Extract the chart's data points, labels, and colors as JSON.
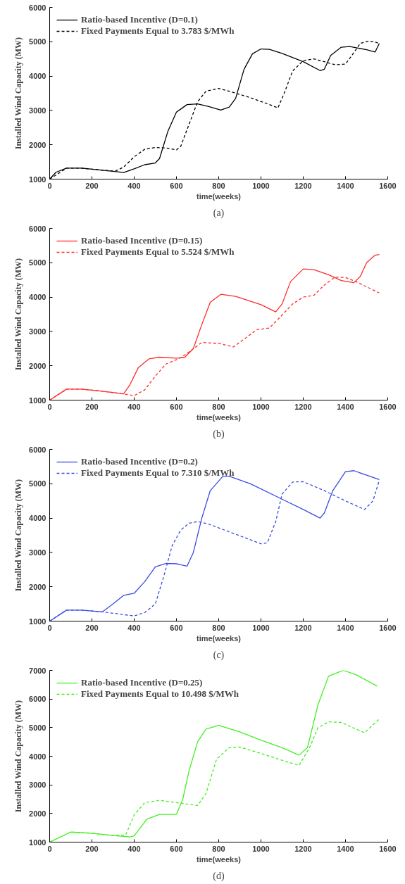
{
  "chart_data": [
    {
      "type": "line",
      "xlabel": "time(weeks)",
      "ylabel": "Installed Wind Capacity (MW)",
      "annotations": [
        "(a)"
      ],
      "xlim": [
        0,
        1600
      ],
      "xticks": [
        0,
        200,
        400,
        600,
        800,
        1000,
        1200,
        1400,
        1600
      ],
      "ylim": [
        1000,
        6000
      ],
      "yticks": [
        1000,
        2000,
        3000,
        4000,
        5000,
        6000
      ],
      "grid": false,
      "legend": "top left",
      "series": [
        {
          "name": "Ratio-based Incentive (D=0.1)",
          "color": "#000000",
          "line_style": "solid",
          "x": [
            0,
            30,
            80,
            150,
            250,
            300,
            350,
            400,
            450,
            500,
            520,
            560,
            600,
            650,
            700,
            750,
            810,
            850,
            880,
            920,
            960,
            1000,
            1040,
            1100,
            1200,
            1280,
            1300,
            1330,
            1380,
            1420,
            1500,
            1540,
            1560
          ],
          "values": [
            1000,
            1200,
            1320,
            1320,
            1260,
            1230,
            1190,
            1300,
            1420,
            1470,
            1600,
            2400,
            2950,
            3170,
            3190,
            3120,
            3010,
            3100,
            3350,
            4200,
            4650,
            4790,
            4780,
            4660,
            4420,
            4160,
            4200,
            4600,
            4840,
            4860,
            4770,
            4700,
            4950
          ]
        },
        {
          "name": "Fixed Payments Equal to 3.783 $/MWh",
          "color": "#000000",
          "line_style": "dashed",
          "x": [
            0,
            80,
            150,
            250,
            310,
            350,
            400,
            450,
            500,
            550,
            600,
            620,
            660,
            700,
            740,
            800,
            850,
            950,
            1050,
            1080,
            1110,
            1150,
            1200,
            1250,
            1300,
            1350,
            1400,
            1430,
            1470,
            1510,
            1540,
            1560
          ],
          "values": [
            1000,
            1320,
            1320,
            1260,
            1230,
            1350,
            1650,
            1870,
            1920,
            1910,
            1850,
            1950,
            2600,
            3250,
            3560,
            3640,
            3560,
            3370,
            3150,
            3070,
            3500,
            4150,
            4450,
            4500,
            4420,
            4330,
            4350,
            4600,
            4950,
            5020,
            4990,
            4950
          ]
        }
      ]
    },
    {
      "type": "line",
      "xlabel": "time(weeks)",
      "ylabel": "Installed Wind Capacity (MW)",
      "annotations": [
        "(b)"
      ],
      "xlim": [
        0,
        1600
      ],
      "xticks": [
        0,
        200,
        400,
        600,
        800,
        1000,
        1200,
        1400,
        1600
      ],
      "ylim": [
        1000,
        6000
      ],
      "yticks": [
        1000,
        2000,
        3000,
        4000,
        5000,
        6000
      ],
      "grid": false,
      "legend": "top left",
      "series": [
        {
          "name": "Ratio-based Incentive (D=0.15)",
          "color": "#ff2a2a",
          "line_style": "solid",
          "x": [
            0,
            80,
            150,
            250,
            350,
            380,
            420,
            470,
            520,
            600,
            640,
            680,
            720,
            760,
            810,
            880,
            1000,
            1070,
            1100,
            1140,
            1200,
            1250,
            1320,
            1380,
            1440,
            1470,
            1500,
            1540,
            1560
          ],
          "values": [
            1000,
            1320,
            1320,
            1260,
            1180,
            1450,
            1950,
            2200,
            2250,
            2220,
            2250,
            2500,
            3200,
            3850,
            4080,
            4020,
            3780,
            3570,
            3800,
            4450,
            4820,
            4800,
            4650,
            4480,
            4420,
            4600,
            5000,
            5220,
            5240
          ]
        },
        {
          "name": "Fixed Payments Equal to 5.524 $/MWh",
          "color": "#ff2a2a",
          "line_style": "dashed",
          "x": [
            0,
            80,
            150,
            250,
            350,
            400,
            450,
            500,
            550,
            620,
            670,
            720,
            800,
            870,
            930,
            980,
            1040,
            1080,
            1150,
            1200,
            1250,
            1300,
            1350,
            1400,
            1450,
            1500,
            1560
          ],
          "values": [
            1000,
            1320,
            1320,
            1260,
            1180,
            1130,
            1300,
            1700,
            2050,
            2230,
            2450,
            2680,
            2650,
            2550,
            2820,
            3050,
            3100,
            3350,
            3800,
            4000,
            4050,
            4350,
            4580,
            4570,
            4450,
            4300,
            4120
          ]
        }
      ]
    },
    {
      "type": "line",
      "xlabel": "time(weeks)",
      "ylabel": "Installed Wind Capacity (MW)",
      "annotations": [
        "(c)"
      ],
      "xlim": [
        0,
        1600
      ],
      "xticks": [
        0,
        200,
        400,
        600,
        800,
        1000,
        1200,
        1400,
        1600
      ],
      "ylim": [
        1000,
        6000
      ],
      "yticks": [
        1000,
        2000,
        3000,
        4000,
        5000,
        6000
      ],
      "grid": false,
      "legend": "top left",
      "series": [
        {
          "name": "Ratio-based Incentive (D=0.2)",
          "color": "#3a4be0",
          "line_style": "solid",
          "x": [
            0,
            80,
            150,
            250,
            300,
            350,
            400,
            450,
            500,
            550,
            600,
            650,
            680,
            720,
            760,
            820,
            850,
            950,
            1100,
            1200,
            1280,
            1300,
            1340,
            1400,
            1440,
            1500,
            1560
          ],
          "values": [
            1000,
            1320,
            1320,
            1270,
            1500,
            1750,
            1810,
            2150,
            2580,
            2680,
            2670,
            2600,
            3000,
            4000,
            4800,
            5220,
            5220,
            5000,
            4550,
            4250,
            4000,
            4150,
            4800,
            5350,
            5380,
            5250,
            5120
          ]
        },
        {
          "name": "Fixed Payments Equal to 7.310 $/MWh",
          "color": "#3a4be0",
          "line_style": "dashed",
          "x": [
            0,
            80,
            150,
            250,
            300,
            400,
            450,
            500,
            540,
            580,
            620,
            660,
            700,
            750,
            850,
            1000,
            1030,
            1070,
            1100,
            1150,
            1200,
            1300,
            1400,
            1490,
            1530,
            1560
          ],
          "values": [
            1000,
            1320,
            1320,
            1270,
            1230,
            1150,
            1250,
            1500,
            2300,
            3200,
            3650,
            3850,
            3900,
            3830,
            3600,
            3250,
            3280,
            3900,
            4700,
            5050,
            5060,
            4800,
            4500,
            4250,
            4500,
            5100
          ]
        }
      ]
    },
    {
      "type": "line",
      "xlabel": "time(weeks)",
      "ylabel": "Installed Wind Capacity (MW)",
      "annotations": [
        "(d)"
      ],
      "xlim": [
        0,
        1600
      ],
      "xticks": [
        0,
        200,
        400,
        600,
        800,
        1000,
        1200,
        1400,
        1600
      ],
      "ylim": [
        1000,
        7000
      ],
      "yticks": [
        1000,
        2000,
        3000,
        4000,
        5000,
        6000,
        7000
      ],
      "grid": false,
      "legend": "top left",
      "series": [
        {
          "name": "Ratio-based Incentive (D=0.25)",
          "color": "#44ee22",
          "line_style": "solid",
          "x": [
            0,
            100,
            200,
            300,
            380,
            400,
            460,
            520,
            600,
            630,
            660,
            700,
            740,
            800,
            900,
            1000,
            1100,
            1180,
            1220,
            1270,
            1320,
            1390,
            1450,
            1550
          ],
          "values": [
            1000,
            1350,
            1310,
            1230,
            1180,
            1220,
            1800,
            1970,
            1970,
            2500,
            3500,
            4500,
            4950,
            5080,
            4850,
            4560,
            4300,
            4040,
            4300,
            5800,
            6800,
            7000,
            6850,
            6450
          ]
        },
        {
          "name": "Fixed Payments Equal to 10.498 $/MWh",
          "color": "#44ee22",
          "line_style": "dashed",
          "x": [
            0,
            100,
            200,
            300,
            360,
            400,
            450,
            520,
            600,
            700,
            740,
            790,
            850,
            900,
            1000,
            1100,
            1180,
            1230,
            1270,
            1320,
            1380,
            1450,
            1490,
            1560
          ],
          "values": [
            1000,
            1350,
            1310,
            1230,
            1250,
            1950,
            2380,
            2460,
            2380,
            2280,
            2700,
            3900,
            4300,
            4320,
            4100,
            3860,
            3680,
            4300,
            5000,
            5200,
            5180,
            4950,
            4820,
            5300
          ]
        }
      ]
    }
  ]
}
